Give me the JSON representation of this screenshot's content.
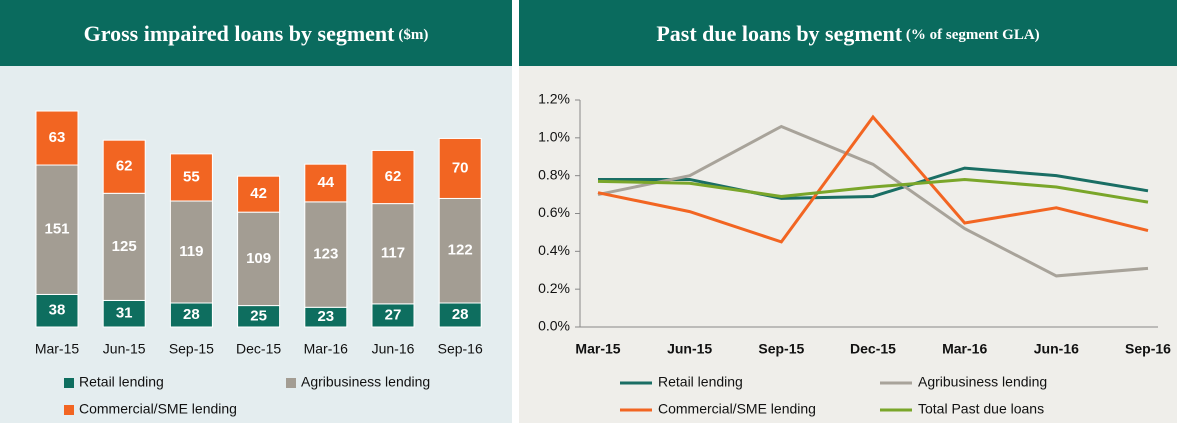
{
  "chart_data": [
    {
      "type": "stacked-bar",
      "title": "Gross impaired loans by segment",
      "subtitle": "($m)",
      "categories": [
        "Mar-15",
        "Jun-15",
        "Sep-15",
        "Dec-15",
        "Mar-16",
        "Jun-16",
        "Sep-16"
      ],
      "series": [
        {
          "name": "Retail lending",
          "color": "#0e6e5f",
          "values": [
            38,
            31,
            28,
            25,
            23,
            27,
            28
          ]
        },
        {
          "name": "Agribusiness lending",
          "color": "#a39d93",
          "values": [
            151,
            125,
            119,
            109,
            123,
            117,
            122
          ]
        },
        {
          "name": "Commercial/SME lending",
          "color": "#f26522",
          "values": [
            63,
            62,
            55,
            42,
            44,
            62,
            70
          ]
        }
      ]
    },
    {
      "type": "line",
      "title": "Past due loans by segment",
      "subtitle": "(% of segment GLA)",
      "categories": [
        "Mar-15",
        "Jun-15",
        "Sep-15",
        "Dec-15",
        "Mar-16",
        "Jun-16",
        "Sep-16"
      ],
      "ylim": [
        0,
        1.2
      ],
      "yticks": [
        {
          "value": 0,
          "label": "0.0%"
        },
        {
          "value": 0.2,
          "label": "0.2%"
        },
        {
          "value": 0.4,
          "label": "0.4%"
        },
        {
          "value": 0.6,
          "label": "0.6%"
        },
        {
          "value": 0.8,
          "label": "0.8%"
        },
        {
          "value": 1.0,
          "label": "1.0%"
        },
        {
          "value": 1.2,
          "label": "1.2%"
        }
      ],
      "series": [
        {
          "name": "Retail lending",
          "color": "#1a6e64",
          "values": [
            0.78,
            0.78,
            0.68,
            0.69,
            0.84,
            0.8,
            0.72
          ]
        },
        {
          "name": "Agribusiness lending",
          "color": "#a8a39a",
          "values": [
            0.7,
            0.8,
            1.06,
            0.86,
            0.52,
            0.27,
            0.31
          ]
        },
        {
          "name": "Commercial/SME lending",
          "color": "#f26522",
          "values": [
            0.71,
            0.61,
            0.45,
            1.11,
            0.55,
            0.63,
            0.51
          ]
        },
        {
          "name": "Total Past due loans",
          "color": "#7aa62a",
          "values": [
            0.77,
            0.76,
            0.69,
            0.74,
            0.78,
            0.74,
            0.66
          ]
        }
      ]
    }
  ]
}
